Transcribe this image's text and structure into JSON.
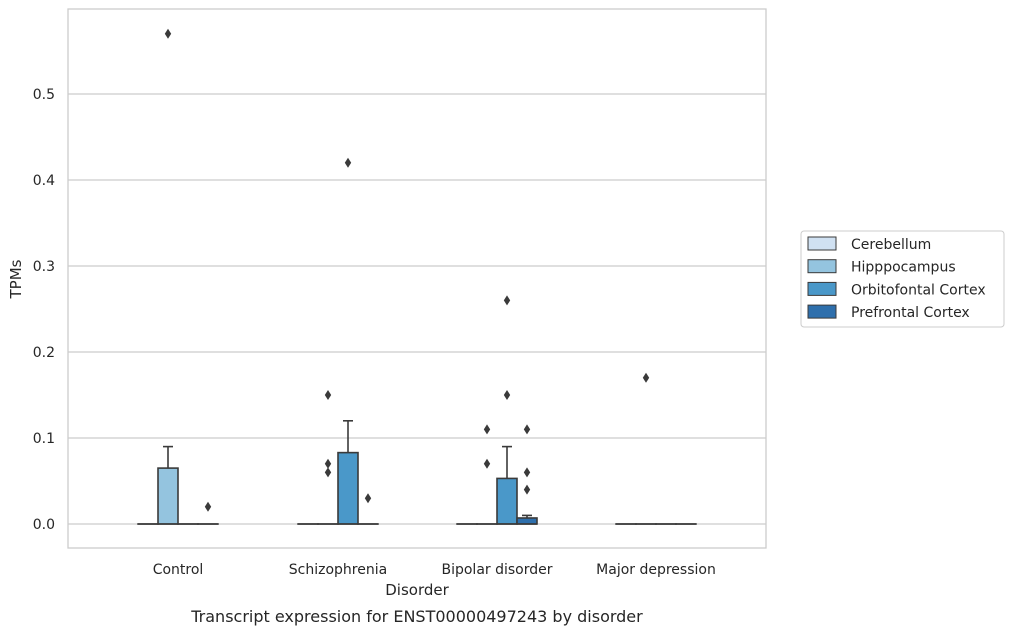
{
  "chart_data": {
    "type": "box",
    "title": "",
    "caption": "Transcript expression for ENST00000497243 by disorder",
    "xlabel": "Disorder",
    "ylabel": "TPMs",
    "ylim": [
      -0.028,
      0.598
    ],
    "yticks": [
      0.0,
      0.1,
      0.2,
      0.3,
      0.4,
      0.5
    ],
    "ytick_labels": [
      "0.0",
      "0.1",
      "0.2",
      "0.3",
      "0.4",
      "0.5"
    ],
    "grid": "horizontal",
    "legend_position": "right",
    "categories": [
      "Control",
      "Schizophrenia",
      "Bipolar disorder",
      "Major depression"
    ],
    "series": [
      {
        "name": "Cerebellum",
        "color": "#d0e1f2",
        "boxes": [
          {
            "category": "Control",
            "q1": 0,
            "median": 0,
            "q3": 0,
            "whisker_low": 0,
            "whisker_high": 0,
            "outliers": []
          },
          {
            "category": "Schizophrenia",
            "q1": 0,
            "median": 0,
            "q3": 0,
            "whisker_low": 0,
            "whisker_high": 0,
            "outliers": []
          },
          {
            "category": "Bipolar disorder",
            "q1": 0,
            "median": 0,
            "q3": 0,
            "whisker_low": 0,
            "whisker_high": 0,
            "outliers": []
          },
          {
            "category": "Major depression",
            "q1": 0,
            "median": 0,
            "q3": 0,
            "whisker_low": 0,
            "whisker_high": 0,
            "outliers": []
          }
        ]
      },
      {
        "name": "Hipppocampus",
        "color": "#94c4df",
        "boxes": [
          {
            "category": "Control",
            "q1": 0,
            "median": 0,
            "q3": 0.065,
            "whisker_low": 0,
            "whisker_high": 0.09,
            "outliers": [
              0.57
            ]
          },
          {
            "category": "Schizophrenia",
            "q1": 0,
            "median": 0,
            "q3": 0,
            "whisker_low": 0,
            "whisker_high": 0,
            "outliers": [
              0.06,
              0.07,
              0.15
            ]
          },
          {
            "category": "Bipolar disorder",
            "q1": 0,
            "median": 0,
            "q3": 0,
            "whisker_low": 0,
            "whisker_high": 0,
            "outliers": [
              0.07,
              0.11
            ]
          },
          {
            "category": "Major depression",
            "q1": 0,
            "median": 0,
            "q3": 0,
            "whisker_low": 0,
            "whisker_high": 0,
            "outliers": [
              0.17
            ]
          }
        ]
      },
      {
        "name": "Orbitofontal Cortex",
        "color": "#4a98c9",
        "boxes": [
          {
            "category": "Control",
            "q1": 0,
            "median": 0,
            "q3": 0,
            "whisker_low": 0,
            "whisker_high": 0,
            "outliers": []
          },
          {
            "category": "Schizophrenia",
            "q1": 0,
            "median": 0,
            "q3": 0.083,
            "whisker_low": 0,
            "whisker_high": 0.12,
            "outliers": [
              0.42
            ]
          },
          {
            "category": "Bipolar disorder",
            "q1": 0,
            "median": 0,
            "q3": 0.053,
            "whisker_low": 0,
            "whisker_high": 0.09,
            "outliers": [
              0.15,
              0.26
            ]
          },
          {
            "category": "Major depression",
            "q1": 0,
            "median": 0,
            "q3": 0,
            "whisker_low": 0,
            "whisker_high": 0,
            "outliers": []
          }
        ]
      },
      {
        "name": "Prefrontal Cortex",
        "color": "#2e6fac",
        "boxes": [
          {
            "category": "Control",
            "q1": 0,
            "median": 0,
            "q3": 0,
            "whisker_low": 0,
            "whisker_high": 0,
            "outliers": [
              0.02
            ]
          },
          {
            "category": "Schizophrenia",
            "q1": 0,
            "median": 0,
            "q3": 0,
            "whisker_low": 0,
            "whisker_high": 0,
            "outliers": [
              0.03
            ]
          },
          {
            "category": "Bipolar disorder",
            "q1": 0,
            "median": 0,
            "q3": 0.007,
            "whisker_low": 0,
            "whisker_high": 0.01,
            "outliers": [
              0.04,
              0.06,
              0.11
            ]
          },
          {
            "category": "Major depression",
            "q1": 0,
            "median": 0,
            "q3": 0,
            "whisker_low": 0,
            "whisker_high": 0,
            "outliers": []
          }
        ]
      }
    ]
  }
}
